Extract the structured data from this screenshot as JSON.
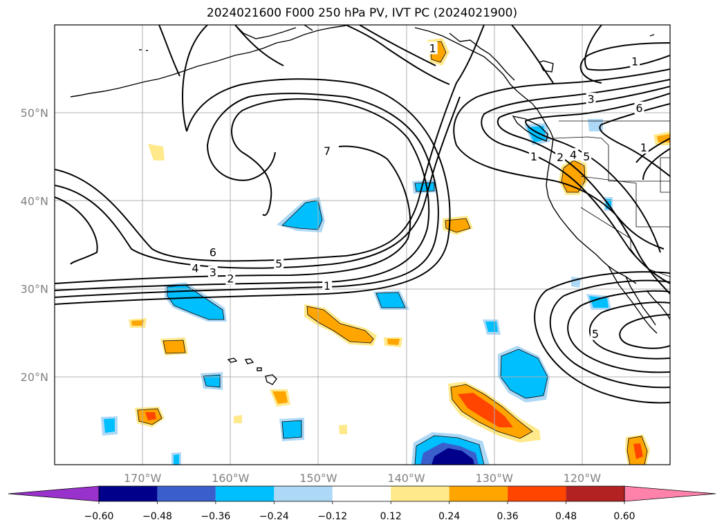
{
  "title": "2024021600 F000 250 hPa PV, IVT PC (2024021900)",
  "map": {
    "lon_range": [
      -180,
      -110
    ],
    "lat_range": [
      10,
      60
    ],
    "lat_ticks": [
      {
        "value": 20,
        "label": "20°N"
      },
      {
        "value": 30,
        "label": "30°N"
      },
      {
        "value": 40,
        "label": "40°N"
      },
      {
        "value": 50,
        "label": "50°N"
      }
    ],
    "lon_ticks": [
      {
        "value": -170,
        "label": "170°W"
      },
      {
        "value": -160,
        "label": "160°W"
      },
      {
        "value": -150,
        "label": "150°W"
      },
      {
        "value": -140,
        "label": "140°W"
      },
      {
        "value": -130,
        "label": "130°W"
      },
      {
        "value": -120,
        "label": "120°W"
      }
    ],
    "grid": true,
    "contour_labels": [
      {
        "text": "1",
        "lon": -149,
        "lat": 30.3
      },
      {
        "text": "2",
        "lon": -160,
        "lat": 31.1
      },
      {
        "text": "3",
        "lon": -162,
        "lat": 31.8
      },
      {
        "text": "4",
        "lon": -164,
        "lat": 32.3
      },
      {
        "text": "5",
        "lon": -154.5,
        "lat": 32.8
      },
      {
        "text": "6",
        "lon": -162,
        "lat": 34.1
      },
      {
        "text": "7",
        "lon": -149,
        "lat": 45.6
      },
      {
        "text": "1",
        "lon": -137,
        "lat": 57.3
      },
      {
        "text": "1",
        "lon": -125.5,
        "lat": 45
      },
      {
        "text": "2",
        "lon": -122.5,
        "lat": 44.9
      },
      {
        "text": "4",
        "lon": -121,
        "lat": 45.2
      },
      {
        "text": "5",
        "lon": -119.5,
        "lat": 45
      },
      {
        "text": "3",
        "lon": -119,
        "lat": 51.5
      },
      {
        "text": "6",
        "lon": -113.5,
        "lat": 50.5
      },
      {
        "text": "1",
        "lon": -114,
        "lat": 55.8
      },
      {
        "text": "1",
        "lon": -113,
        "lat": 46
      },
      {
        "text": "5",
        "lon": -118.5,
        "lat": 24.8
      }
    ]
  },
  "colorbar": {
    "levels": [
      -0.6,
      -0.48,
      -0.36,
      -0.24,
      -0.12,
      0.12,
      0.24,
      0.36,
      0.48,
      0.6
    ],
    "labels": [
      "−0.60",
      "−0.48",
      "−0.36",
      "−0.24",
      "−0.12",
      "0.12",
      "0.24",
      "0.36",
      "0.48",
      "0.60"
    ],
    "colors": [
      "#9932CC",
      "#00008B",
      "#3A5FCD",
      "#00BFFF",
      "#ADD8F6",
      "#FFFFFF",
      "#FFE98A",
      "#FFA500",
      "#FF4500",
      "#B22222",
      "#FF82AB"
    ]
  }
}
